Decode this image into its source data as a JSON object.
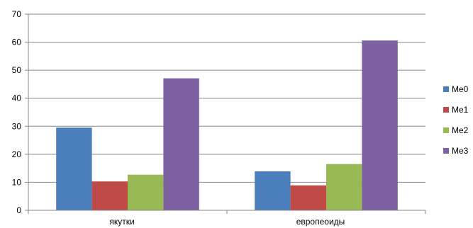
{
  "chart_data": {
    "type": "bar",
    "categories": [
      "якутки",
      "европеоиды"
    ],
    "series": [
      {
        "name": "Me0",
        "color": "#4a7ebb",
        "values": [
          29.5,
          13.9
        ]
      },
      {
        "name": "Me1",
        "color": "#be4b48",
        "values": [
          10.3,
          8.9
        ]
      },
      {
        "name": "Me2",
        "color": "#98b954",
        "values": [
          12.7,
          16.5
        ]
      },
      {
        "name": "Me3",
        "color": "#7d60a0",
        "values": [
          47.1,
          60.6
        ]
      }
    ],
    "ylim": [
      0,
      70
    ],
    "yticks": [
      0,
      10,
      20,
      30,
      40,
      50,
      60,
      70
    ],
    "title": "",
    "xlabel": "",
    "ylabel": "",
    "grid": true,
    "legend": "right"
  }
}
